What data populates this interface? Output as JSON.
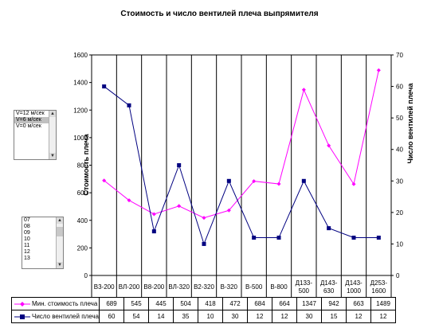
{
  "title": "Стоимость и число вентилей плеча выпрямителя",
  "speed_list": {
    "items": [
      "V=12 м/сек",
      "V=6 м/сек",
      "V=0 м/сек"
    ],
    "selected_index": 1
  },
  "number_list": {
    "items": [
      "07",
      "08",
      "09",
      "10",
      "11",
      "12",
      "13"
    ]
  },
  "chart_data": {
    "type": "line",
    "title": "Стоимость и число вентилей плеча выпрямителя",
    "categories": [
      "В3-200",
      "ВЛ-200",
      "В8-200",
      "ВЛ-320",
      "В2-320",
      "В-320",
      "В-500",
      "В-800",
      "Д133-500",
      "Д143-630",
      "Д143-1000",
      "Д253-1600"
    ],
    "series": [
      {
        "name": "Мин. стоимость плеча",
        "axis": "left",
        "color": "#ff00ff",
        "marker": "diamond",
        "values": [
          689,
          545,
          445,
          504,
          418,
          472,
          684,
          664,
          1347,
          942,
          663,
          1489
        ]
      },
      {
        "name": "Число вентилей плеча",
        "axis": "right",
        "color": "#000080",
        "marker": "square",
        "values": [
          60,
          54,
          14,
          35,
          10,
          30,
          12,
          12,
          30,
          15,
          12,
          12
        ]
      }
    ],
    "ylabel_left": "Стоимость плеча",
    "ylabel_right": "Число вентилей плеча",
    "ylim_left": [
      0,
      1600
    ],
    "ylim_right": [
      0,
      70
    ],
    "yticks_left": [
      "0",
      "200",
      "400",
      "600",
      "800",
      "1000",
      "1200",
      "1400",
      "1600"
    ],
    "yticks_right": [
      "0",
      "10",
      "20",
      "30",
      "40",
      "50",
      "60",
      "70"
    ],
    "grid": true,
    "legend": "data-table"
  }
}
